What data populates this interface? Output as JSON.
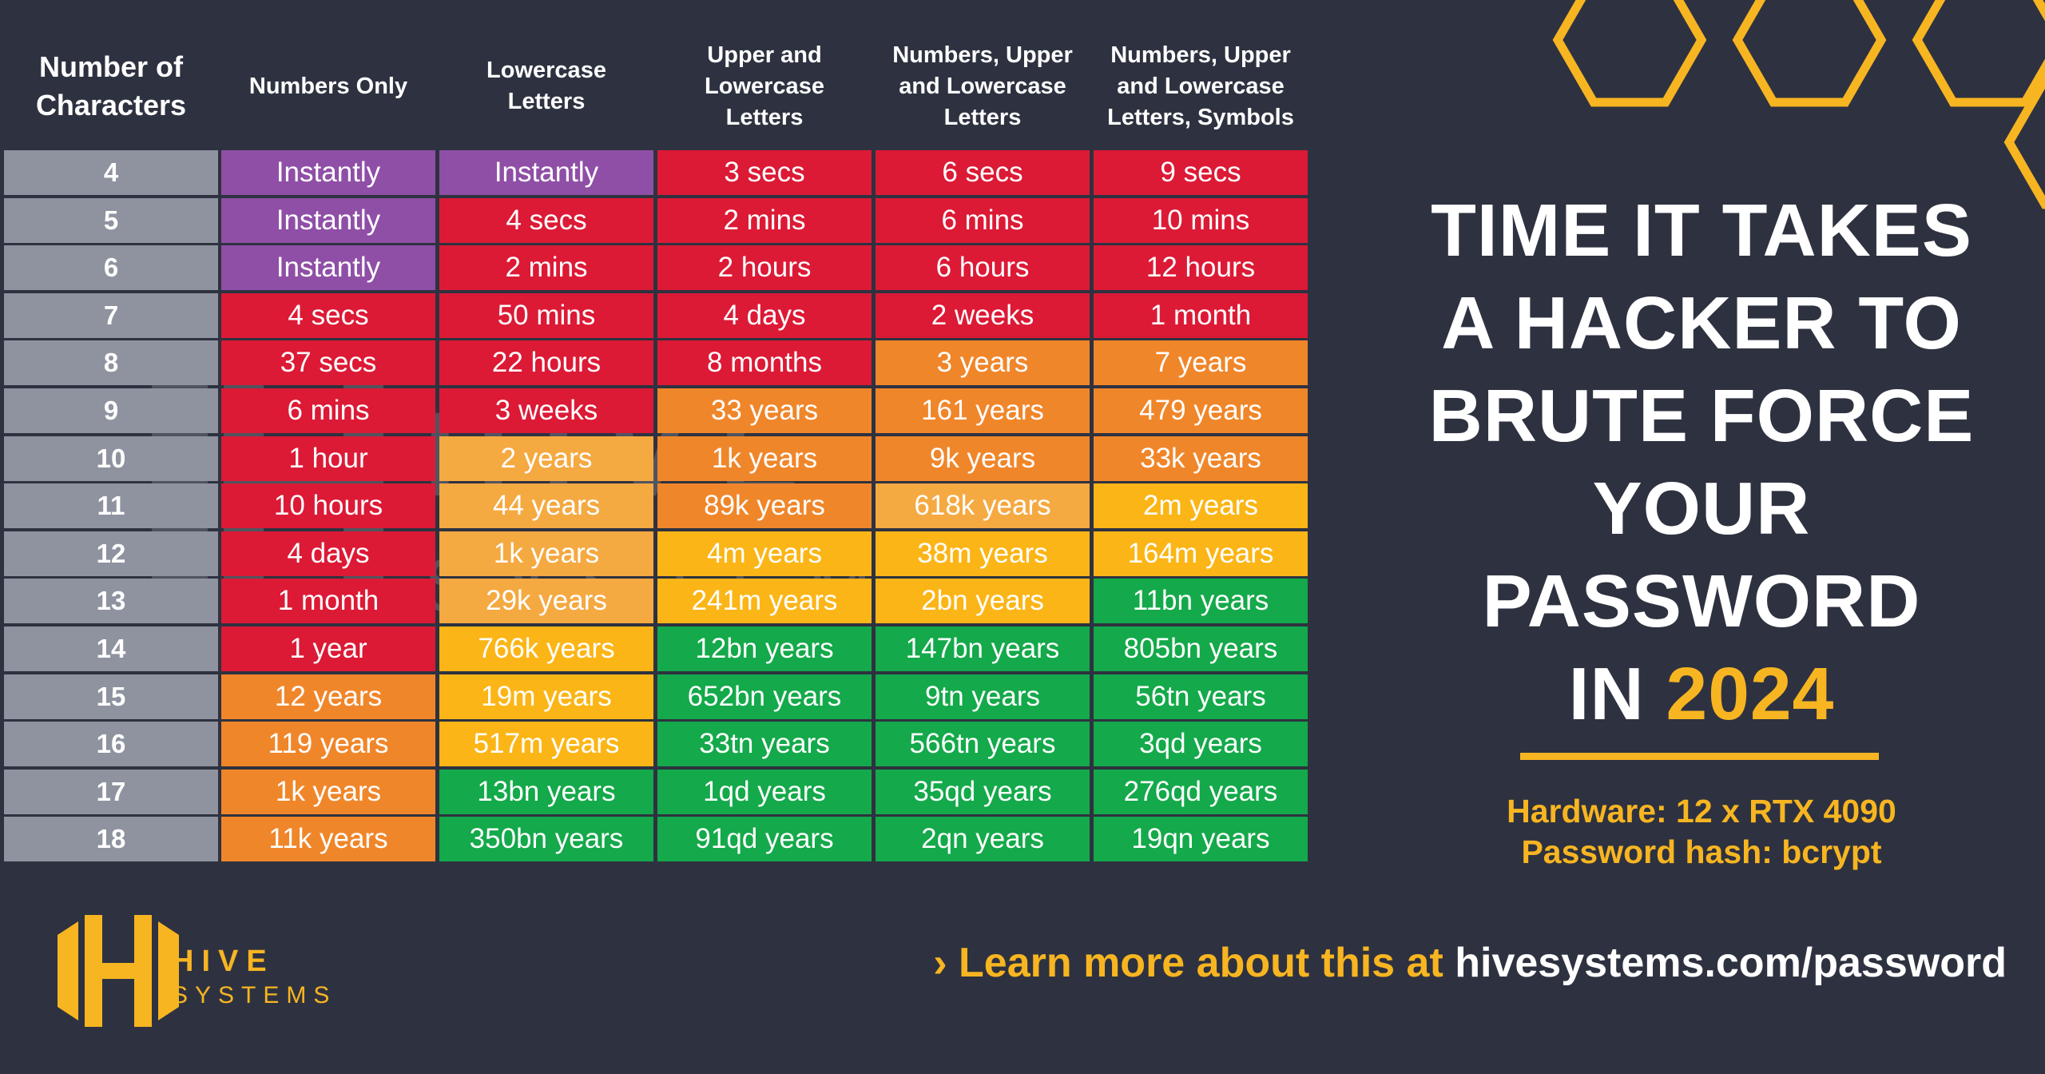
{
  "table": {
    "headers": [
      "Number of\nCharacters",
      "Numbers Only",
      "Lowercase\nLetters",
      "Upper and\nLowercase\nLetters",
      "Numbers, Upper\nand Lowercase\nLetters",
      "Numbers, Upper\nand Lowercase\nLetters, Symbols"
    ],
    "rows": [
      {
        "n": "4",
        "cells": [
          "Instantly",
          "Instantly",
          "3 secs",
          "6 secs",
          "9 secs"
        ]
      },
      {
        "n": "5",
        "cells": [
          "Instantly",
          "4 secs",
          "2 mins",
          "6 mins",
          "10 mins"
        ]
      },
      {
        "n": "6",
        "cells": [
          "Instantly",
          "2 mins",
          "2 hours",
          "6 hours",
          "12 hours"
        ]
      },
      {
        "n": "7",
        "cells": [
          "4 secs",
          "50 mins",
          "4 days",
          "2 weeks",
          "1 month"
        ]
      },
      {
        "n": "8",
        "cells": [
          "37 secs",
          "22 hours",
          "8 months",
          "3 years",
          "7 years"
        ]
      },
      {
        "n": "9",
        "cells": [
          "6 mins",
          "3 weeks",
          "33 years",
          "161 years",
          "479 years"
        ]
      },
      {
        "n": "10",
        "cells": [
          "1 hour",
          "2 years",
          "1k years",
          "9k years",
          "33k years"
        ]
      },
      {
        "n": "11",
        "cells": [
          "10 hours",
          "44 years",
          "89k years",
          "618k years",
          "2m years"
        ]
      },
      {
        "n": "12",
        "cells": [
          "4 days",
          "1k years",
          "4m years",
          "38m years",
          "164m years"
        ]
      },
      {
        "n": "13",
        "cells": [
          "1 month",
          "29k years",
          "241m years",
          "2bn years",
          "11bn years"
        ]
      },
      {
        "n": "14",
        "cells": [
          "1 year",
          "766k years",
          "12bn years",
          "147bn years",
          "805bn years"
        ]
      },
      {
        "n": "15",
        "cells": [
          "12 years",
          "19m years",
          "652bn years",
          "9tn years",
          "56tn years"
        ]
      },
      {
        "n": "16",
        "cells": [
          "119 years",
          "517m years",
          "33tn years",
          "566tn years",
          "3qd years"
        ]
      },
      {
        "n": "17",
        "cells": [
          "1k years",
          "13bn years",
          "1qd years",
          "35qd years",
          "276qd years"
        ]
      },
      {
        "n": "18",
        "cells": [
          "11k years",
          "350bn years",
          "91qd years",
          "2qn years",
          "19qn years"
        ]
      }
    ],
    "colors": [
      [
        "P",
        "P",
        "R",
        "R",
        "R"
      ],
      [
        "P",
        "R",
        "R",
        "R",
        "R"
      ],
      [
        "P",
        "R",
        "R",
        "R",
        "R"
      ],
      [
        "R",
        "R",
        "R",
        "R",
        "R"
      ],
      [
        "R",
        "R",
        "R",
        "O",
        "O"
      ],
      [
        "R",
        "R",
        "O",
        "O",
        "O"
      ],
      [
        "R",
        "L",
        "O",
        "O",
        "O"
      ],
      [
        "R",
        "L",
        "O",
        "L",
        "Y"
      ],
      [
        "R",
        "L",
        "Y",
        "Y",
        "Y"
      ],
      [
        "R",
        "L",
        "Y",
        "Y",
        "G"
      ],
      [
        "R",
        "Y",
        "G",
        "G",
        "G"
      ],
      [
        "O",
        "Y",
        "G",
        "G",
        "G"
      ],
      [
        "O",
        "Y",
        "G",
        "G",
        "G"
      ],
      [
        "O",
        "G",
        "G",
        "G",
        "G"
      ],
      [
        "O",
        "G",
        "G",
        "G",
        "G"
      ]
    ],
    "palette": {
      "P": "#8f4fa6",
      "R": "#dc1a36",
      "O": "#f0862a",
      "L": "#f5a941",
      "Y": "#fbb516",
      "G": "#14a94a"
    }
  },
  "title": {
    "line1": "TIME IT TAKES",
    "line2": "A HACKER TO",
    "line3": "BRUTE FORCE",
    "line4": "YOUR",
    "line5": "PASSWORD",
    "line6_prefix": "IN ",
    "year": "2024"
  },
  "specs": {
    "hardware": "Hardware: 12 x RTX 4090",
    "hash": "Password hash: bcrypt"
  },
  "footer": {
    "prefix": "› Learn more about this at ",
    "url": "hivesystems.com/password"
  },
  "logo": {
    "word1": "HIVE",
    "word2": "SYSTEMS"
  },
  "watermark": {
    "word1": "HIVE",
    "word2": "SYSTEMS"
  },
  "accent": "#f7b521",
  "background": "#2e3240"
}
